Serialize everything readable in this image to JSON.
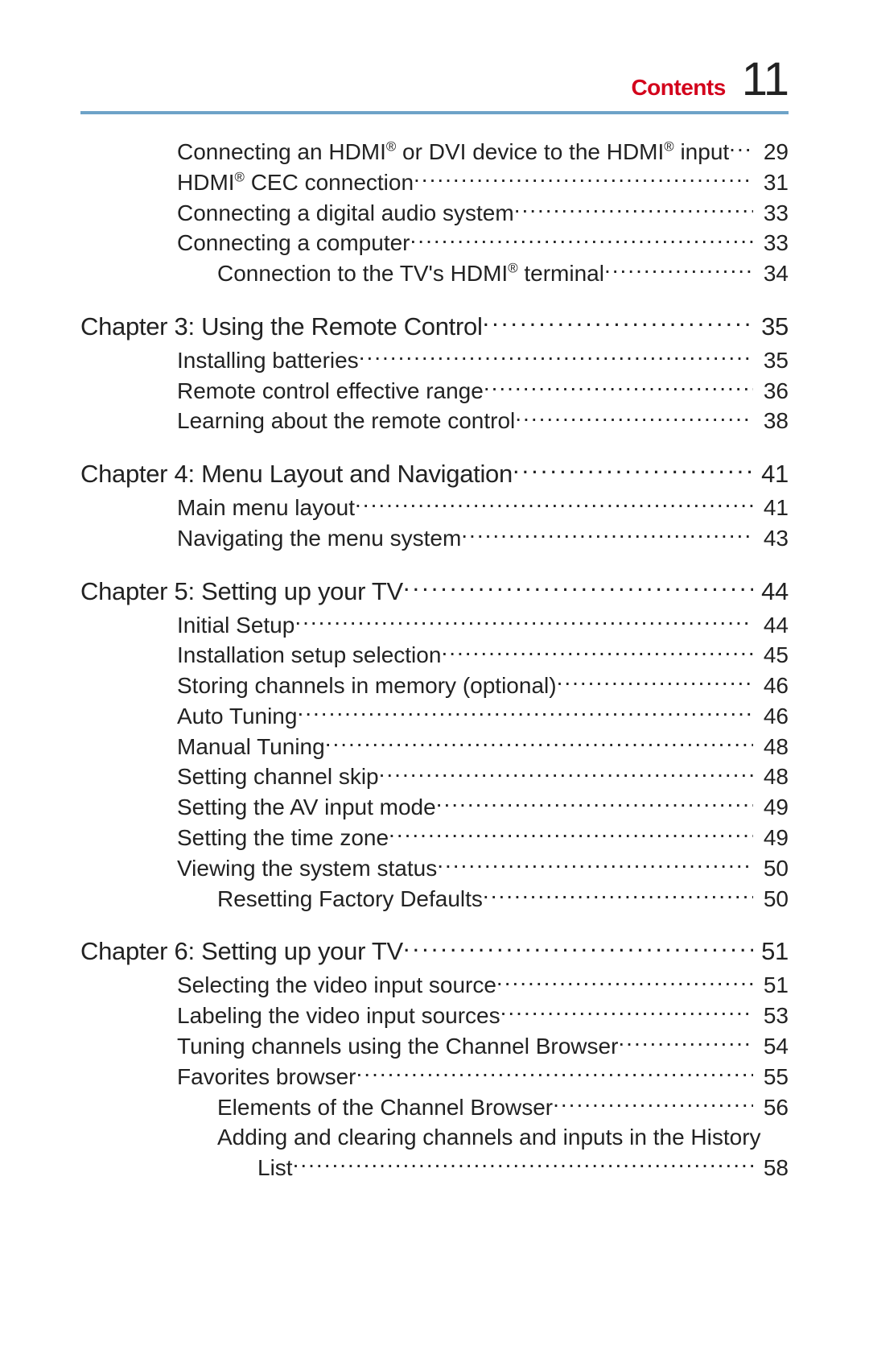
{
  "header": {
    "label": "Contents",
    "page_number": "11",
    "label_color": "#d3001b",
    "number_color": "#222222",
    "rule_color": "#6ea3c8"
  },
  "text_color": "#222222",
  "background_color": "#ffffff",
  "body_fontsize": 28,
  "chapter_fontsize": 31,
  "entries": [
    {
      "type": "sub",
      "indent": 1,
      "wrap_indent": 2,
      "label_html": "Connecting an HDMI<sup>®</sup> or DVI device to the HDMI<sup>®</sup> input",
      "page": "29"
    },
    {
      "type": "sub",
      "indent": 1,
      "label_html": "HDMI<sup>®</sup> CEC connection",
      "page": "31"
    },
    {
      "type": "sub",
      "indent": 1,
      "label_html": "Connecting a digital audio system",
      "page": "33"
    },
    {
      "type": "sub",
      "indent": 1,
      "label_html": "Connecting a computer",
      "page": "33"
    },
    {
      "type": "sub",
      "indent": 2,
      "label_html": "Connection to the TV's HDMI<sup>®</sup> terminal",
      "page": "34"
    },
    {
      "type": "chapter",
      "label_html": "Chapter 3: Using the Remote Control",
      "page": " 35"
    },
    {
      "type": "sub",
      "indent": 1,
      "label_html": "Installing batteries",
      "page": "35"
    },
    {
      "type": "sub",
      "indent": 1,
      "label_html": "Remote control effective range",
      "page": "36"
    },
    {
      "type": "sub",
      "indent": 1,
      "label_html": "Learning about the remote control",
      "page": "38"
    },
    {
      "type": "chapter",
      "label_html": "Chapter 4: Menu Layout and Navigation",
      "page": " 41"
    },
    {
      "type": "sub",
      "indent": 1,
      "label_html": "Main menu layout",
      "page": "41"
    },
    {
      "type": "sub",
      "indent": 1,
      "label_html": "Navigating the menu system",
      "page": "43"
    },
    {
      "type": "chapter",
      "label_html": "Chapter 5: Setting up your TV",
      "page": " 44"
    },
    {
      "type": "sub",
      "indent": 1,
      "label_html": "Initial Setup",
      "page": "44"
    },
    {
      "type": "sub",
      "indent": 1,
      "label_html": "Installation setup selection",
      "page": "45"
    },
    {
      "type": "sub",
      "indent": 1,
      "label_html": "Storing channels in memory (optional)",
      "page": "46"
    },
    {
      "type": "sub",
      "indent": 1,
      "label_html": "Auto Tuning",
      "page": "46"
    },
    {
      "type": "sub",
      "indent": 1,
      "label_html": "Manual Tuning",
      "page": "48"
    },
    {
      "type": "sub",
      "indent": 1,
      "label_html": "Setting channel skip",
      "page": "48"
    },
    {
      "type": "sub",
      "indent": 1,
      "label_html": "Setting the AV input mode",
      "page": "49"
    },
    {
      "type": "sub",
      "indent": 1,
      "label_html": "Setting the time zone",
      "page": "49"
    },
    {
      "type": "sub",
      "indent": 1,
      "label_html": "Viewing the system status",
      "page": "50"
    },
    {
      "type": "sub",
      "indent": 2,
      "label_html": "Resetting Factory Defaults",
      "page": "50"
    },
    {
      "type": "chapter",
      "label_html": "Chapter 6: Setting up your TV",
      "page": " 51"
    },
    {
      "type": "sub",
      "indent": 1,
      "label_html": "Selecting the video input source",
      "page": "51"
    },
    {
      "type": "sub",
      "indent": 1,
      "label_html": "Labeling the video input sources",
      "page": "53"
    },
    {
      "type": "sub",
      "indent": 1,
      "label_html": "Tuning channels using the Channel Browser",
      "page": "54"
    },
    {
      "type": "sub",
      "indent": 1,
      "label_html": "Favorites browser",
      "page": "55"
    },
    {
      "type": "sub",
      "indent": 2,
      "label_html": "Elements of the Channel Browser",
      "page": "56"
    },
    {
      "type": "sub",
      "indent": 2,
      "wrap_indent": 3,
      "label_html": "Adding and clearing channels and inputs in the History List",
      "page": "58"
    }
  ]
}
